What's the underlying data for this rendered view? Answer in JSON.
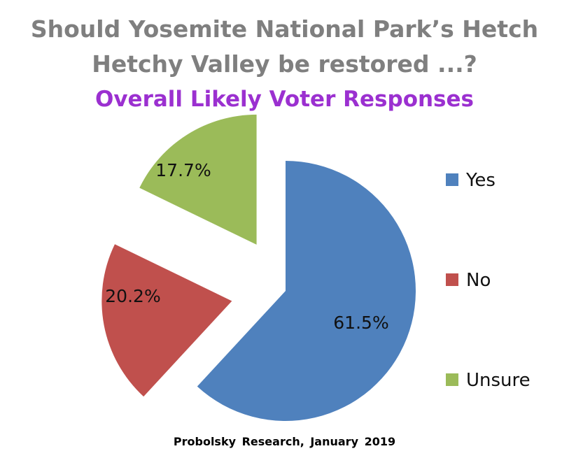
{
  "chart_data": {
    "type": "pie",
    "title": "Should Yosemite National Park’s Hetch Hetchy Valley be restored ...?",
    "title_lines": [
      "Should Yosemite National Park’s Hetch",
      "Hetchy Valley be restored ...?"
    ],
    "subtitle": "Overall Likely Voter Responses",
    "source": "Probolsky Research, January 2019",
    "legend_position": "right",
    "slices": [
      {
        "name": "Yes",
        "value": 61.5,
        "label": "61.5%",
        "color": "#4F81BD",
        "exploded": false
      },
      {
        "name": "No",
        "value": 20.2,
        "label": "20.2%",
        "color": "#C0504D",
        "exploded": true
      },
      {
        "name": "Unsure",
        "value": 17.7,
        "label": "17.7%",
        "color": "#9BBB59",
        "exploded": true
      }
    ]
  }
}
